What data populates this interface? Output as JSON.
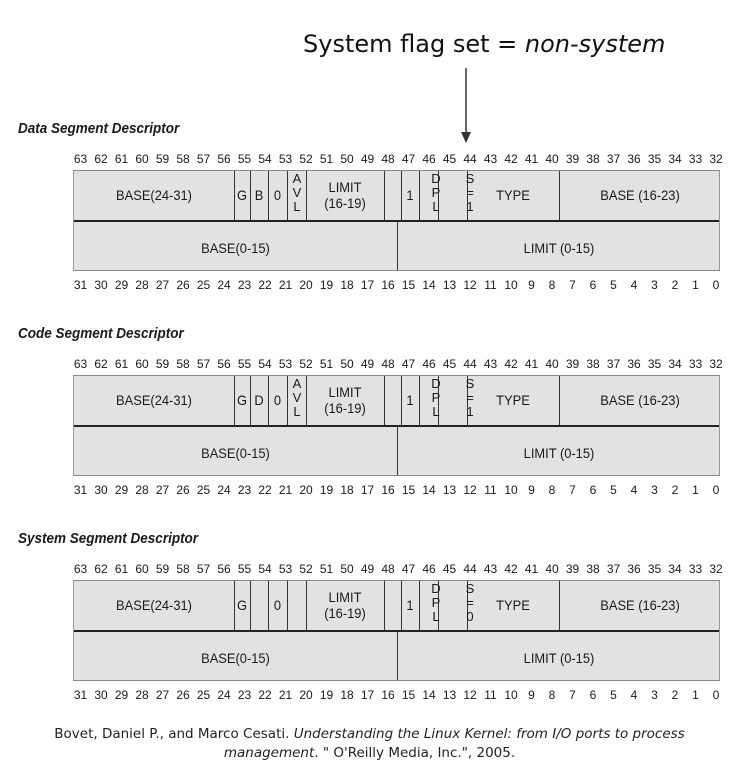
{
  "annotation": {
    "prefix": "System flag set = ",
    "value": "non-system"
  },
  "bit_labels_high": [
    "63",
    "62",
    "61",
    "60",
    "59",
    "58",
    "57",
    "56",
    "55",
    "54",
    "53",
    "52",
    "51",
    "50",
    "49",
    "48",
    "47",
    "46",
    "45",
    "44",
    "43",
    "42",
    "41",
    "40",
    "39",
    "38",
    "37",
    "36",
    "35",
    "34",
    "33",
    "32"
  ],
  "bit_labels_low": [
    "31",
    "30",
    "29",
    "28",
    "27",
    "26",
    "25",
    "24",
    "23",
    "22",
    "21",
    "20",
    "19",
    "18",
    "17",
    "16",
    "15",
    "14",
    "13",
    "12",
    "11",
    "10",
    "9",
    "8",
    "7",
    "6",
    "5",
    "4",
    "3",
    "2",
    "1",
    "0"
  ],
  "descriptors": [
    {
      "title": "Data Segment Descriptor",
      "base_high": "BASE(24-31)",
      "g": "G",
      "db": "B",
      "zero": "0",
      "avl": [
        "A",
        "V",
        "L"
      ],
      "limit_high": [
        "LIMIT",
        "(16-19)"
      ],
      "p": "1",
      "dpl": [
        "D",
        "P",
        "L"
      ],
      "s": [
        "S",
        "=",
        "1"
      ],
      "type": "TYPE",
      "base_mid": "BASE (16-23)",
      "base_low": "BASE(0-15)",
      "limit_low": "LIMIT (0-15)"
    },
    {
      "title": "Code Segment Descriptor",
      "base_high": "BASE(24-31)",
      "g": "G",
      "db": "D",
      "zero": "0",
      "avl": [
        "A",
        "V",
        "L"
      ],
      "limit_high": [
        "LIMIT",
        "(16-19)"
      ],
      "p": "1",
      "dpl": [
        "D",
        "P",
        "L"
      ],
      "s": [
        "S",
        "=",
        "1"
      ],
      "type": "TYPE",
      "base_mid": "BASE (16-23)",
      "base_low": "BASE(0-15)",
      "limit_low": "LIMIT (0-15)"
    },
    {
      "title": "System Segment Descriptor",
      "base_high": "BASE(24-31)",
      "g": "G",
      "db": "",
      "zero": "0",
      "avl": [
        "",
        "",
        ""
      ],
      "limit_high": [
        "LIMIT",
        "(16-19)"
      ],
      "p": "1",
      "dpl": [
        "D",
        "P",
        "L"
      ],
      "s": [
        "S",
        "=",
        "0"
      ],
      "type": "TYPE",
      "base_mid": "BASE (16-23)",
      "base_low": "BASE(0-15)",
      "limit_low": "LIMIT (0-15)"
    }
  ],
  "citation": {
    "authors": "Bovet, Daniel P., and Marco Cesati. ",
    "book_title_1": "Understanding the Linux Kernel: from I/O ports to process",
    "book_title_2": "management",
    "publisher": ". \" O'Reilly Media, Inc.\", 2005."
  }
}
